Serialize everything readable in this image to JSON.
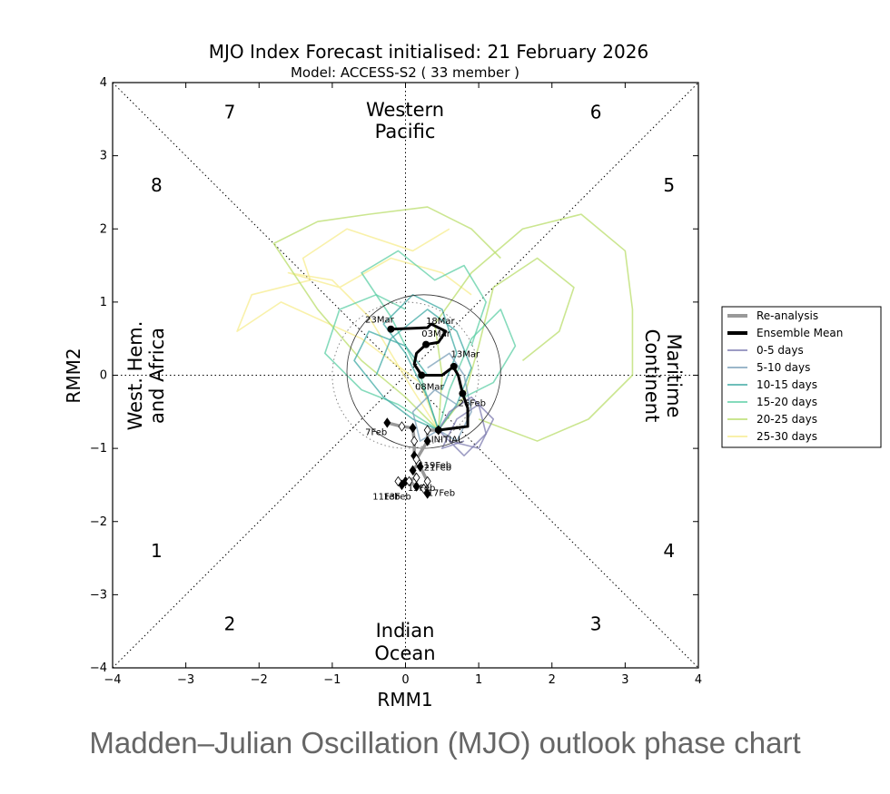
{
  "caption": "Madden–Julian Oscillation (MJO) outlook phase chart",
  "chart_data": {
    "type": "scatter",
    "title": "MJO Index Forecast initialised:  21  February 2026",
    "subtitle": "Model: ACCESS-S2 ( 33 member )",
    "xlabel": "RMM1",
    "ylabel": "RMM2",
    "xlim": [
      -4,
      4
    ],
    "ylim": [
      -4,
      4
    ],
    "ticks": [
      -4,
      -3,
      -2,
      -1,
      0,
      1,
      2,
      3,
      4
    ],
    "tick_labels": [
      "−4",
      "−3",
      "−2",
      "−1",
      "0",
      "1",
      "2",
      "3",
      "4"
    ],
    "phases": [
      {
        "label": "1",
        "x": -3.4,
        "y": -2.4
      },
      {
        "label": "2",
        "x": -2.4,
        "y": -3.4
      },
      {
        "label": "3",
        "x": 2.6,
        "y": -3.4
      },
      {
        "label": "4",
        "x": 3.6,
        "y": -2.4
      },
      {
        "label": "5",
        "x": 3.6,
        "y": 2.6
      },
      {
        "label": "6",
        "x": 2.6,
        "y": 3.6
      },
      {
        "label": "7",
        "x": -2.4,
        "y": 3.6
      },
      {
        "label": "8",
        "x": -3.4,
        "y": 2.6
      }
    ],
    "regions": {
      "top": [
        "Western",
        "Pacific"
      ],
      "bottom": [
        "Indian",
        "Ocean"
      ],
      "left": [
        "West. Hem.",
        "and Africa"
      ],
      "right": [
        "Maritime",
        "Continent"
      ]
    },
    "legend": {
      "position": "right",
      "entries": [
        {
          "label": "Re-analysis",
          "color": "#999999",
          "width": 4
        },
        {
          "label": "Ensemble Mean",
          "color": "#000000",
          "width": 4
        },
        {
          "label": "0-5 days",
          "color": "#7d7cb0",
          "width": 1
        },
        {
          "label": "5-10 days",
          "color": "#7a9fb8",
          "width": 1
        },
        {
          "label": "10-15 days",
          "color": "#3fa9a4",
          "width": 1
        },
        {
          "label": "15-20 days",
          "color": "#5dcfa5",
          "width": 1
        },
        {
          "label": "20-25 days",
          "color": "#b9de6b",
          "width": 1
        },
        {
          "label": "25-30 days",
          "color": "#f7ec8e",
          "width": 1
        }
      ]
    },
    "reanalysis": {
      "color": "#999999",
      "points": [
        {
          "date": "7Feb",
          "x": -0.25,
          "y": -0.65
        },
        {
          "date": "",
          "x": -0.05,
          "y": -0.7
        },
        {
          "date": "",
          "x": 0.1,
          "y": -0.72
        },
        {
          "date": "",
          "x": 0.12,
          "y": -0.9
        },
        {
          "date": "",
          "x": 0.12,
          "y": -1.1
        },
        {
          "date": "",
          "x": 0.18,
          "y": -1.2
        },
        {
          "date": "",
          "x": 0.1,
          "y": -1.3
        },
        {
          "date": "",
          "x": 0.15,
          "y": -1.4
        },
        {
          "date": "",
          "x": 0.0,
          "y": -1.45
        },
        {
          "date": "",
          "x": -0.1,
          "y": -1.45
        },
        {
          "date": "11Feb",
          "x": -0.05,
          "y": -1.5
        },
        {
          "date": "13Feb",
          "x": 0.05,
          "y": -1.45
        },
        {
          "date": "15Feb",
          "x": 0.15,
          "y": -1.52
        },
        {
          "date": "",
          "x": 0.25,
          "y": -1.55
        },
        {
          "date": "17Feb",
          "x": 0.3,
          "y": -1.62
        },
        {
          "date": "",
          "x": 0.3,
          "y": -1.45
        },
        {
          "date": "19Feb",
          "x": 0.2,
          "y": -1.25
        },
        {
          "date": "21Feb",
          "x": 0.15,
          "y": -1.15
        },
        {
          "date": "",
          "x": 0.3,
          "y": -0.9
        },
        {
          "date": "",
          "x": 0.3,
          "y": -0.75
        },
        {
          "date": "INITIAL",
          "x": 0.45,
          "y": -0.75
        }
      ],
      "date_labels": [
        {
          "text": "7Feb",
          "x": -0.55,
          "y": -0.82
        },
        {
          "text": "19Feb",
          "x": 0.25,
          "y": -1.27
        },
        {
          "text": "21Feb",
          "x": 0.25,
          "y": -1.3
        },
        {
          "text": "15Feb",
          "x": 0.03,
          "y": -1.58
        },
        {
          "text": "11Feb",
          "x": -0.45,
          "y": -1.7
        },
        {
          "text": "13Feb",
          "x": -0.3,
          "y": -1.7
        },
        {
          "text": "17Feb",
          "x": 0.3,
          "y": -1.65
        }
      ]
    },
    "ensemble_mean": {
      "color": "#000000",
      "points": [
        {
          "date": "INITIAL",
          "x": 0.45,
          "y": -0.75
        },
        {
          "date": "",
          "x": 0.85,
          "y": -0.7
        },
        {
          "date": "",
          "x": 0.85,
          "y": -0.45
        },
        {
          "date": "26Feb",
          "x": 0.78,
          "y": -0.25
        },
        {
          "date": "",
          "x": 0.72,
          "y": 0.0
        },
        {
          "date": "",
          "x": 0.66,
          "y": 0.1
        },
        {
          "date": "13Mar",
          "x": 0.66,
          "y": 0.12
        },
        {
          "date": "",
          "x": 0.5,
          "y": 0.0
        },
        {
          "date": "08Mar",
          "x": 0.22,
          "y": 0.0
        },
        {
          "date": "",
          "x": 0.12,
          "y": 0.15
        },
        {
          "date": "",
          "x": 0.15,
          "y": 0.3
        },
        {
          "date": "03Mar",
          "x": 0.28,
          "y": 0.42
        },
        {
          "date": "",
          "x": 0.45,
          "y": 0.45
        },
        {
          "date": "18Mar",
          "x": 0.55,
          "y": 0.6
        },
        {
          "date": "",
          "x": 0.35,
          "y": 0.7
        },
        {
          "date": "",
          "x": 0.3,
          "y": 0.65
        },
        {
          "date": "23Mar",
          "x": -0.2,
          "y": 0.63
        }
      ],
      "markers": [
        {
          "x": 0.45,
          "y": -0.75
        },
        {
          "x": 0.78,
          "y": -0.25
        },
        {
          "x": 0.66,
          "y": 0.12
        },
        {
          "x": 0.22,
          "y": 0.0
        },
        {
          "x": 0.28,
          "y": 0.42
        },
        {
          "x": -0.2,
          "y": 0.63
        }
      ],
      "date_labels": [
        {
          "text": "23Mar",
          "x": -0.55,
          "y": 0.72
        },
        {
          "text": "18Mar",
          "x": 0.28,
          "y": 0.7
        },
        {
          "text": "03Mar",
          "x": 0.22,
          "y": 0.53
        },
        {
          "text": "13Mar",
          "x": 0.62,
          "y": 0.25
        },
        {
          "text": "08Mar",
          "x": 0.13,
          "y": -0.2
        },
        {
          "text": "26Feb",
          "x": 0.72,
          "y": -0.42
        },
        {
          "text": "INITIAL",
          "x": 0.35,
          "y": -0.92
        }
      ]
    },
    "amplitude_circle_radius": 1,
    "spread_circle_radius": 1.05,
    "ensemble_members": [
      {
        "group": "25-30 days",
        "color": "#f7ec8e",
        "points": [
          [
            0.45,
            -0.75
          ],
          [
            0.2,
            -0.1
          ],
          [
            -0.6,
            0.5
          ],
          [
            -1.7,
            1.0
          ],
          [
            -2.3,
            0.6
          ],
          [
            -2.1,
            1.1
          ],
          [
            -1.3,
            1.3
          ],
          [
            -1.4,
            1.6
          ],
          [
            -0.8,
            2.0
          ],
          [
            0.1,
            1.7
          ],
          [
            0.6,
            2.0
          ]
        ]
      },
      {
        "group": "25-30 days",
        "color": "#f7ec8e",
        "points": [
          [
            0.45,
            -0.75
          ],
          [
            0.1,
            -0.2
          ],
          [
            -0.5,
            0.8
          ],
          [
            -1.0,
            1.3
          ],
          [
            -1.6,
            1.4
          ],
          [
            -0.9,
            1.2
          ],
          [
            -0.2,
            1.6
          ],
          [
            0.5,
            1.4
          ],
          [
            0.9,
            1.1
          ]
        ]
      },
      {
        "group": "20-25 days",
        "color": "#b9de6b",
        "points": [
          [
            0.45,
            -0.75
          ],
          [
            0.5,
            0.0
          ],
          [
            0.4,
            0.7
          ],
          [
            0.9,
            1.4
          ],
          [
            1.6,
            2.0
          ],
          [
            2.4,
            2.2
          ],
          [
            3.0,
            1.7
          ],
          [
            3.1,
            0.9
          ],
          [
            3.1,
            0.0
          ],
          [
            2.5,
            -0.6
          ],
          [
            1.8,
            -0.9
          ],
          [
            1.0,
            -0.6
          ]
        ]
      },
      {
        "group": "20-25 days",
        "color": "#b9de6b",
        "points": [
          [
            0.45,
            -0.75
          ],
          [
            0.0,
            -0.3
          ],
          [
            -0.6,
            0.2
          ],
          [
            -1.2,
            0.9
          ],
          [
            -1.8,
            1.8
          ],
          [
            -1.2,
            2.1
          ],
          [
            -0.5,
            2.2
          ],
          [
            0.3,
            2.3
          ],
          [
            0.9,
            2.0
          ],
          [
            1.3,
            1.6
          ]
        ]
      },
      {
        "group": "20-25 days",
        "color": "#b9de6b",
        "points": [
          [
            0.45,
            -0.75
          ],
          [
            0.8,
            -0.3
          ],
          [
            1.0,
            0.4
          ],
          [
            1.2,
            1.2
          ],
          [
            1.8,
            1.6
          ],
          [
            2.3,
            1.2
          ],
          [
            2.1,
            0.6
          ],
          [
            1.6,
            0.2
          ]
        ]
      },
      {
        "group": "15-20 days",
        "color": "#5dcfa5",
        "points": [
          [
            0.45,
            -0.75
          ],
          [
            0.2,
            0.0
          ],
          [
            -0.2,
            0.8
          ],
          [
            -0.6,
            1.4
          ],
          [
            -0.1,
            1.7
          ],
          [
            0.4,
            1.3
          ],
          [
            0.8,
            1.5
          ],
          [
            1.1,
            1.0
          ],
          [
            0.9,
            0.4
          ]
        ]
      },
      {
        "group": "15-20 days",
        "color": "#5dcfa5",
        "points": [
          [
            0.45,
            -0.75
          ],
          [
            0.6,
            -0.2
          ],
          [
            0.9,
            0.5
          ],
          [
            1.3,
            0.9
          ],
          [
            1.5,
            0.4
          ],
          [
            1.2,
            -0.1
          ],
          [
            0.8,
            -0.3
          ]
        ]
      },
      {
        "group": "15-20 days",
        "color": "#5dcfa5",
        "points": [
          [
            0.45,
            -0.75
          ],
          [
            -0.1,
            -0.4
          ],
          [
            -0.6,
            -0.2
          ],
          [
            -1.1,
            0.3
          ],
          [
            -0.9,
            0.9
          ],
          [
            -0.4,
            1.1
          ],
          [
            0.0,
            0.9
          ]
        ]
      },
      {
        "group": "10-15 days",
        "color": "#3fa9a4",
        "points": [
          [
            0.45,
            -0.75
          ],
          [
            0.3,
            -0.3
          ],
          [
            0.0,
            0.3
          ],
          [
            -0.3,
            0.7
          ],
          [
            0.1,
            1.1
          ],
          [
            0.5,
            0.9
          ],
          [
            0.7,
            0.3
          ],
          [
            0.5,
            -0.2
          ]
        ]
      },
      {
        "group": "10-15 days",
        "color": "#3fa9a4",
        "points": [
          [
            0.45,
            -0.75
          ],
          [
            0.7,
            -0.4
          ],
          [
            0.9,
            0.1
          ],
          [
            0.7,
            0.6
          ],
          [
            0.3,
            0.9
          ],
          [
            -0.2,
            0.5
          ],
          [
            -0.4,
            0.0
          ]
        ]
      },
      {
        "group": "10-15 days",
        "color": "#3fa9a4",
        "points": [
          [
            0.45,
            -0.75
          ],
          [
            0.1,
            -0.6
          ],
          [
            -0.3,
            -0.3
          ],
          [
            -0.7,
            0.2
          ],
          [
            -0.5,
            0.6
          ],
          [
            0.0,
            0.4
          ],
          [
            0.3,
            0.0
          ]
        ]
      },
      {
        "group": "5-10 days",
        "color": "#7a9fb8",
        "points": [
          [
            0.45,
            -0.75
          ],
          [
            0.7,
            -0.9
          ],
          [
            0.9,
            -0.5
          ],
          [
            0.8,
            0.0
          ],
          [
            0.6,
            0.3
          ],
          [
            0.3,
            0.1
          ]
        ]
      },
      {
        "group": "5-10 days",
        "color": "#7a9fb8",
        "points": [
          [
            0.45,
            -0.75
          ],
          [
            0.2,
            -0.9
          ],
          [
            0.1,
            -0.5
          ],
          [
            0.4,
            -0.2
          ],
          [
            0.7,
            -0.4
          ]
        ]
      },
      {
        "group": "0-5 days",
        "color": "#7d7cb0",
        "points": [
          [
            0.45,
            -0.75
          ],
          [
            0.8,
            -1.1
          ],
          [
            1.1,
            -0.8
          ],
          [
            1.0,
            -0.4
          ],
          [
            0.7,
            -0.6
          ],
          [
            0.5,
            -1.0
          ],
          [
            0.8,
            -0.9
          ]
        ]
      },
      {
        "group": "0-5 days",
        "color": "#7d7cb0",
        "points": [
          [
            0.45,
            -0.75
          ],
          [
            0.6,
            -0.5
          ],
          [
            0.9,
            -0.3
          ],
          [
            1.2,
            -0.6
          ],
          [
            1.0,
            -1.0
          ],
          [
            0.6,
            -0.9
          ]
        ]
      }
    ]
  }
}
